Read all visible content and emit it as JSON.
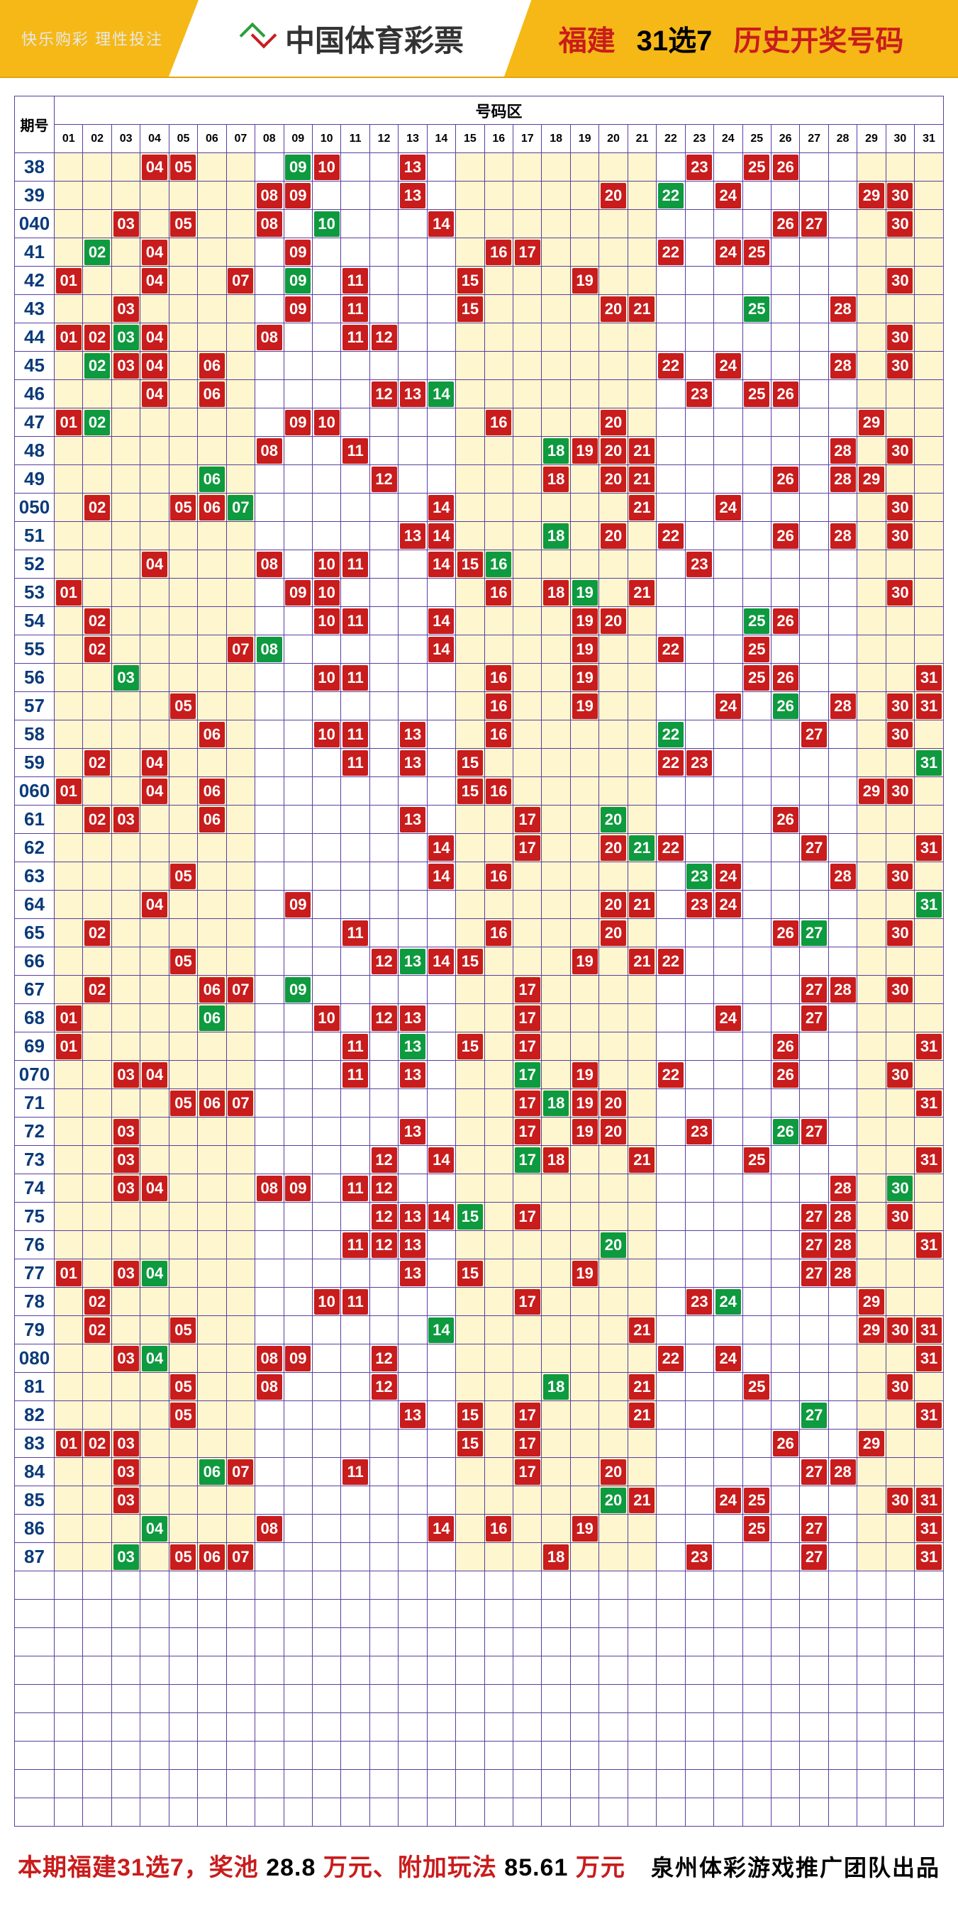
{
  "header": {
    "tagline": "快乐购彩  理性投注",
    "brand": "中国体育彩票",
    "region": "福建",
    "game": "31选7",
    "title": "历史开奖号码"
  },
  "table": {
    "period_label": "期号",
    "zone_label": "号码区",
    "num_cols": 31,
    "zone_breaks": [
      7,
      14,
      21,
      28,
      31
    ],
    "col_headers": [
      "01",
      "02",
      "03",
      "04",
      "05",
      "06",
      "07",
      "08",
      "09",
      "10",
      "11",
      "12",
      "13",
      "14",
      "15",
      "16",
      "17",
      "18",
      "19",
      "20",
      "21",
      "22",
      "23",
      "24",
      "25",
      "26",
      "27",
      "28",
      "29",
      "30",
      "31"
    ],
    "rows": [
      {
        "p": "38",
        "r": [
          4,
          5,
          10,
          13,
          23,
          25,
          26
        ],
        "g": [
          9
        ]
      },
      {
        "p": "39",
        "r": [
          8,
          9,
          13,
          20,
          24,
          29,
          30
        ],
        "g": [
          22
        ]
      },
      {
        "p": "040",
        "r": [
          3,
          5,
          8,
          14,
          26,
          27,
          30
        ],
        "g": [
          10
        ]
      },
      {
        "p": "41",
        "r": [
          4,
          9,
          16,
          17,
          22,
          24,
          25
        ],
        "g": [
          2
        ]
      },
      {
        "p": "42",
        "r": [
          1,
          4,
          7,
          11,
          15,
          19,
          30
        ],
        "g": [
          9
        ]
      },
      {
        "p": "43",
        "r": [
          3,
          9,
          11,
          15,
          20,
          21,
          28
        ],
        "g": [
          25
        ]
      },
      {
        "p": "44",
        "r": [
          1,
          2,
          4,
          8,
          11,
          12,
          30
        ],
        "g": [
          3
        ]
      },
      {
        "p": "45",
        "r": [
          3,
          4,
          6,
          22,
          24,
          28,
          30
        ],
        "g": [
          2
        ]
      },
      {
        "p": "46",
        "r": [
          4,
          6,
          12,
          13,
          23,
          25,
          26
        ],
        "g": [
          14
        ]
      },
      {
        "p": "47",
        "r": [
          1,
          9,
          10,
          16,
          20,
          29
        ],
        "g": [
          2
        ]
      },
      {
        "p": "48",
        "r": [
          8,
          11,
          19,
          20,
          21,
          28,
          30
        ],
        "g": [
          18
        ]
      },
      {
        "p": "49",
        "r": [
          12,
          18,
          20,
          21,
          26,
          28,
          29
        ],
        "g": [
          6
        ]
      },
      {
        "p": "050",
        "r": [
          2,
          5,
          6,
          14,
          21,
          24,
          30
        ],
        "g": [
          7
        ]
      },
      {
        "p": "51",
        "r": [
          13,
          14,
          20,
          22,
          26,
          28,
          30
        ],
        "g": [
          18
        ]
      },
      {
        "p": "52",
        "r": [
          4,
          8,
          10,
          11,
          14,
          15,
          23
        ],
        "g": [
          16
        ]
      },
      {
        "p": "53",
        "r": [
          1,
          9,
          10,
          16,
          18,
          21,
          30
        ],
        "g": [
          19
        ]
      },
      {
        "p": "54",
        "r": [
          2,
          10,
          11,
          14,
          19,
          20,
          26
        ],
        "g": [
          25
        ]
      },
      {
        "p": "55",
        "r": [
          2,
          7,
          14,
          19,
          22,
          25
        ],
        "g": [
          8
        ]
      },
      {
        "p": "56",
        "r": [
          10,
          11,
          16,
          19,
          25,
          26,
          31
        ],
        "g": [
          3
        ]
      },
      {
        "p": "57",
        "r": [
          5,
          16,
          19,
          24,
          28,
          30,
          31
        ],
        "g": [
          26
        ]
      },
      {
        "p": "58",
        "r": [
          6,
          10,
          11,
          13,
          16,
          27,
          30
        ],
        "g": [
          22
        ]
      },
      {
        "p": "59",
        "r": [
          2,
          4,
          11,
          13,
          15,
          22,
          23
        ],
        "g": [
          31
        ]
      },
      {
        "p": "060",
        "r": [
          1,
          4,
          6,
          15,
          16,
          29,
          30
        ],
        "g": []
      },
      {
        "p": "61",
        "r": [
          2,
          3,
          6,
          13,
          17,
          26
        ],
        "g": [
          20
        ]
      },
      {
        "p": "62",
        "r": [
          14,
          17,
          20,
          22,
          27,
          31
        ],
        "g": [
          21
        ]
      },
      {
        "p": "63",
        "r": [
          5,
          14,
          16,
          24,
          28,
          30
        ],
        "g": [
          23
        ]
      },
      {
        "p": "64",
        "r": [
          4,
          9,
          20,
          21,
          23,
          24
        ],
        "g": [
          31
        ]
      },
      {
        "p": "65",
        "r": [
          2,
          11,
          16,
          20,
          26,
          30
        ],
        "g": [
          27
        ]
      },
      {
        "p": "66",
        "r": [
          5,
          12,
          14,
          15,
          19,
          21,
          22
        ],
        "g": [
          13
        ]
      },
      {
        "p": "67",
        "r": [
          2,
          6,
          7,
          17,
          27,
          28,
          30
        ],
        "g": [
          9
        ]
      },
      {
        "p": "68",
        "r": [
          1,
          10,
          12,
          13,
          17,
          24,
          27
        ],
        "g": [
          6
        ]
      },
      {
        "p": "69",
        "r": [
          1,
          11,
          15,
          17,
          26,
          31
        ],
        "g": [
          13
        ]
      },
      {
        "p": "070",
        "r": [
          3,
          4,
          11,
          13,
          19,
          22,
          26,
          30
        ],
        "g": [
          17
        ]
      },
      {
        "p": "71",
        "r": [
          5,
          6,
          7,
          17,
          19,
          20,
          31
        ],
        "g": [
          18
        ]
      },
      {
        "p": "72",
        "r": [
          3,
          13,
          17,
          19,
          20,
          23,
          27
        ],
        "g": [
          26
        ]
      },
      {
        "p": "73",
        "r": [
          3,
          12,
          14,
          18,
          21,
          25,
          31
        ],
        "g": [
          17
        ]
      },
      {
        "p": "74",
        "r": [
          3,
          4,
          8,
          9,
          11,
          12,
          28
        ],
        "g": [
          30
        ]
      },
      {
        "p": "75",
        "r": [
          12,
          13,
          14,
          17,
          27,
          28,
          30
        ],
        "g": [
          15
        ]
      },
      {
        "p": "76",
        "r": [
          11,
          12,
          13,
          27,
          28,
          31
        ],
        "g": [
          20
        ]
      },
      {
        "p": "77",
        "r": [
          1,
          3,
          13,
          15,
          19,
          27,
          28
        ],
        "g": [
          4
        ]
      },
      {
        "p": "78",
        "r": [
          2,
          10,
          11,
          17,
          23,
          29
        ],
        "g": [
          24
        ]
      },
      {
        "p": "79",
        "r": [
          2,
          5,
          21,
          29,
          30,
          31
        ],
        "g": [
          14
        ]
      },
      {
        "p": "080",
        "r": [
          3,
          8,
          9,
          12,
          22,
          24,
          31
        ],
        "g": [
          4
        ]
      },
      {
        "p": "81",
        "r": [
          5,
          8,
          12,
          21,
          25,
          30
        ],
        "g": [
          18
        ]
      },
      {
        "p": "82",
        "r": [
          5,
          13,
          15,
          17,
          21,
          31
        ],
        "g": [
          27
        ]
      },
      {
        "p": "83",
        "r": [
          1,
          2,
          3,
          15,
          17,
          26,
          29
        ],
        "g": []
      },
      {
        "p": "84",
        "r": [
          3,
          7,
          11,
          17,
          20,
          27,
          28
        ],
        "g": [
          6
        ]
      },
      {
        "p": "85",
        "r": [
          3,
          21,
          24,
          25,
          30,
          31
        ],
        "g": [
          20
        ]
      },
      {
        "p": "86",
        "r": [
          8,
          14,
          16,
          19,
          25,
          27,
          31
        ],
        "g": [
          4
        ]
      },
      {
        "p": "87",
        "r": [
          5,
          6,
          7,
          18,
          23,
          27,
          31
        ],
        "g": [
          3
        ]
      }
    ],
    "empty_rows": 9
  },
  "footer": {
    "l1": "本期福建31选7，奖池",
    "v1": "28.8",
    "l2": "万元、附加玩法",
    "v2": "85.61",
    "l3": "万元",
    "credit": "泉州体彩游戏推广团队出品"
  },
  "colors": {
    "red": "#c91c1c",
    "green": "#0e9a3f",
    "yellow_zone": "#fdf6cf",
    "border": "#5a3ea0",
    "header_gold": "#f5b817"
  }
}
